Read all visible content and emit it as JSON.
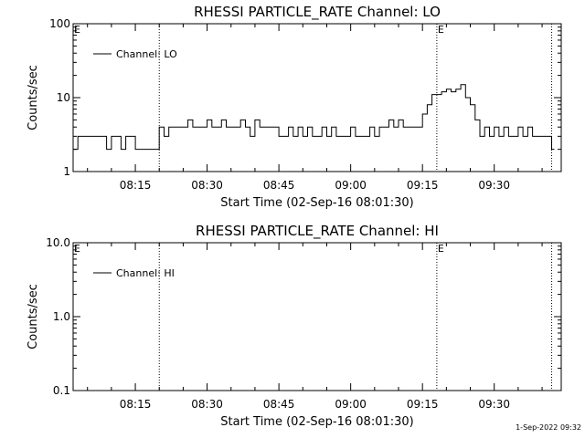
{
  "footer": {
    "timestamp": "1-Sep-2022 09:32"
  },
  "chart_data": [
    {
      "type": "line",
      "title": "RHESSI PARTICLE_RATE Channel: LO",
      "xlabel": "Start Time (02-Sep-16 08:01:30)",
      "ylabel": "Counts/sec",
      "yscale": "log",
      "ylim": [
        1,
        100
      ],
      "ytick_labels": [
        "1",
        "10",
        "100"
      ],
      "ytick_values": [
        1,
        10,
        100
      ],
      "xlim": [
        "08:02:00",
        "09:44:00"
      ],
      "xtick_labels": [
        "08:15",
        "08:30",
        "08:45",
        "09:00",
        "09:15",
        "09:30"
      ],
      "xtick_values": [
        "08:15",
        "08:30",
        "08:45",
        "09:00",
        "09:15",
        "09:30"
      ],
      "legend": {
        "position": "top-left",
        "entries": [
          "Channel: LO"
        ]
      },
      "event_markers": {
        "times": [
          "08:20",
          "09:18",
          "09:42"
        ],
        "labels": [
          "E",
          "E",
          "E"
        ]
      },
      "series": [
        {
          "name": "Channel: LO",
          "x": [
            "08:02",
            "08:03",
            "08:04",
            "08:05",
            "08:06",
            "08:07",
            "08:08",
            "08:09",
            "08:10",
            "08:11",
            "08:12",
            "08:13",
            "08:14",
            "08:15",
            "08:16",
            "08:17",
            "08:18",
            "08:19",
            "08:20",
            "08:21",
            "08:22",
            "08:23",
            "08:24",
            "08:25",
            "08:26",
            "08:27",
            "08:28",
            "08:29",
            "08:30",
            "08:31",
            "08:32",
            "08:33",
            "08:34",
            "08:35",
            "08:36",
            "08:37",
            "08:38",
            "08:39",
            "08:40",
            "08:41",
            "08:42",
            "08:43",
            "08:44",
            "08:45",
            "08:46",
            "08:47",
            "08:48",
            "08:49",
            "08:50",
            "08:51",
            "08:52",
            "08:53",
            "08:54",
            "08:55",
            "08:56",
            "08:57",
            "08:58",
            "08:59",
            "09:00",
            "09:01",
            "09:02",
            "09:03",
            "09:04",
            "09:05",
            "09:06",
            "09:07",
            "09:08",
            "09:09",
            "09:10",
            "09:11",
            "09:12",
            "09:13",
            "09:14",
            "09:15",
            "09:16",
            "09:17",
            "09:18",
            "09:19",
            "09:20",
            "09:21",
            "09:22",
            "09:23",
            "09:24",
            "09:25",
            "09:26",
            "09:27",
            "09:28",
            "09:29",
            "09:30",
            "09:31",
            "09:32",
            "09:33",
            "09:34",
            "09:35",
            "09:36",
            "09:37",
            "09:38",
            "09:39",
            "09:40",
            "09:41",
            "09:42"
          ],
          "y": [
            2,
            3,
            3,
            3,
            3,
            3,
            3,
            2,
            3,
            3,
            2,
            3,
            3,
            2,
            2,
            2,
            2,
            2,
            4,
            3,
            4,
            4,
            4,
            4,
            5,
            4,
            4,
            4,
            5,
            4,
            4,
            5,
            4,
            4,
            4,
            5,
            4,
            3,
            5,
            4,
            4,
            4,
            4,
            3,
            3,
            4,
            3,
            4,
            3,
            4,
            3,
            3,
            4,
            3,
            4,
            3,
            3,
            3,
            4,
            3,
            3,
            3,
            4,
            3,
            4,
            4,
            5,
            4,
            5,
            4,
            4,
            4,
            4,
            6,
            8,
            11,
            11,
            12,
            13,
            12,
            13,
            15,
            10,
            8,
            5,
            3,
            4,
            3,
            4,
            3,
            4,
            3,
            3,
            4,
            3,
            4,
            3,
            3,
            3,
            3,
            2
          ]
        }
      ]
    },
    {
      "type": "line",
      "title": "RHESSI PARTICLE_RATE Channel: HI",
      "xlabel": "Start Time (02-Sep-16 08:01:30)",
      "ylabel": "Counts/sec",
      "yscale": "log",
      "ylim": [
        0.1,
        10
      ],
      "ytick_labels": [
        "0.1",
        "1.0",
        "10.0"
      ],
      "ytick_values": [
        0.1,
        1,
        10
      ],
      "xlim": [
        "08:02:00",
        "09:44:00"
      ],
      "xtick_labels": [
        "08:15",
        "08:30",
        "08:45",
        "09:00",
        "09:15",
        "09:30"
      ],
      "xtick_values": [
        "08:15",
        "08:30",
        "08:45",
        "09:00",
        "09:15",
        "09:30"
      ],
      "legend": {
        "position": "top-left",
        "entries": [
          "Channel: HI"
        ]
      },
      "event_markers": {
        "times": [
          "08:20",
          "09:18",
          "09:42"
        ],
        "labels": [
          "E",
          "E",
          "E"
        ]
      },
      "series": [
        {
          "name": "Channel: HI",
          "x": [],
          "y": []
        }
      ]
    }
  ]
}
